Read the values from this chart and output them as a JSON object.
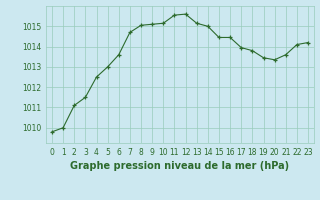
{
  "x": [
    0,
    1,
    2,
    3,
    4,
    5,
    6,
    7,
    8,
    9,
    10,
    11,
    12,
    13,
    14,
    15,
    16,
    17,
    18,
    19,
    20,
    21,
    22,
    23
  ],
  "y": [
    1009.8,
    1010.0,
    1011.1,
    1011.5,
    1012.5,
    1013.0,
    1013.6,
    1014.7,
    1015.05,
    1015.1,
    1015.15,
    1015.55,
    1015.6,
    1015.15,
    1015.0,
    1014.45,
    1014.45,
    1013.95,
    1013.8,
    1013.45,
    1013.35,
    1013.6,
    1014.1,
    1014.2
  ],
  "line_color": "#2d6b2d",
  "marker": "+",
  "bg_color": "#cce8f0",
  "grid_color": "#99ccbb",
  "xlabel": "Graphe pression niveau de la mer (hPa)",
  "ylim": [
    1009.25,
    1016.0
  ],
  "yticks": [
    1010,
    1011,
    1012,
    1013,
    1014,
    1015
  ],
  "xtick_labels": [
    "0",
    "1",
    "2",
    "3",
    "4",
    "5",
    "6",
    "7",
    "8",
    "9",
    "10",
    "11",
    "12",
    "13",
    "14",
    "15",
    "16",
    "17",
    "18",
    "19",
    "20",
    "21",
    "22",
    "23"
  ],
  "tick_fontsize": 5.5,
  "xlabel_fontsize": 7.0,
  "xlabel_fontweight": "bold"
}
